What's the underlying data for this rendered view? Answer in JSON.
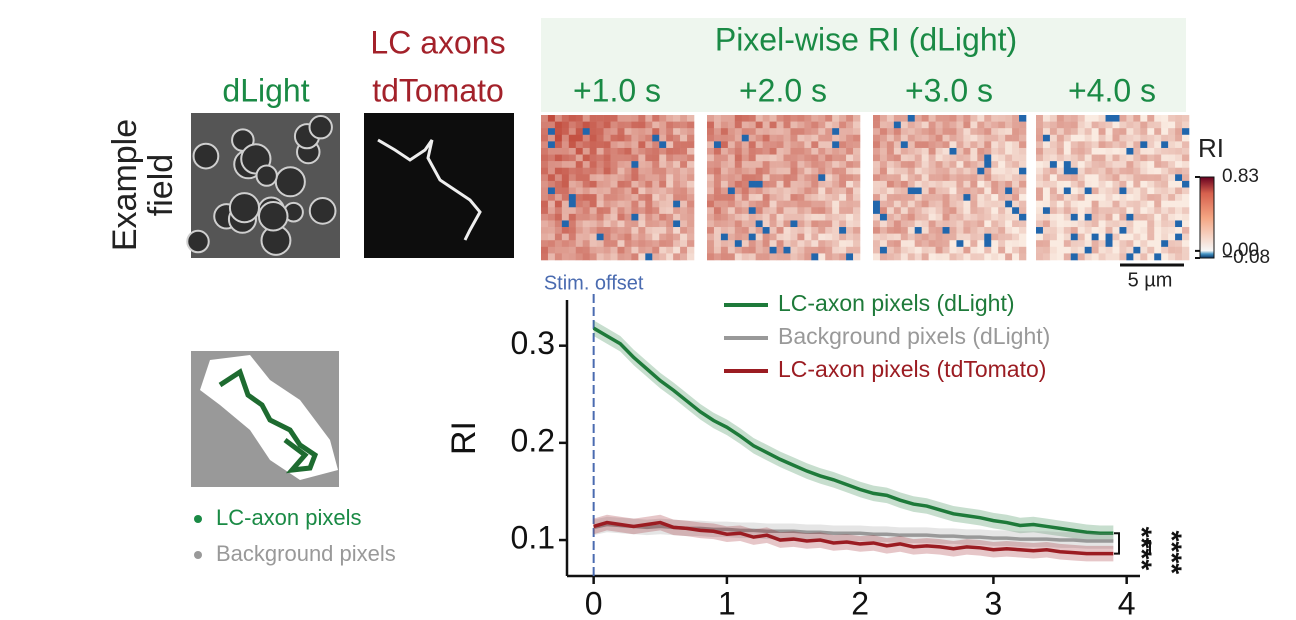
{
  "row_label": [
    "Example",
    "field"
  ],
  "images": {
    "dlight": "dLight",
    "lc_axons": [
      "LC axons",
      "tdTomato"
    ]
  },
  "heatmaps": {
    "title": "Pixel-wise RI (dLight)",
    "times": [
      "+1.0 s",
      "+2.0 s",
      "+3.0 s",
      "+4.0 s"
    ]
  },
  "colorbar": {
    "label": "RI",
    "lim": [
      -0.08,
      0.83
    ],
    "ticks": [
      {
        "value": 0.83,
        "label": "0.83"
      },
      {
        "value": 0,
        "label": "0.00"
      },
      {
        "value": -0.08,
        "label": "−0.08"
      }
    ]
  },
  "scale_bar": "5 µm",
  "mask_legend": [
    "LC-axon pixels",
    "Background pixels"
  ],
  "chart_data": {
    "type": "line",
    "ylabel": "RI",
    "x": [
      0,
      0.1,
      0.2,
      0.3,
      0.4,
      0.5,
      0.6,
      0.7,
      0.8,
      0.9,
      1.0,
      1.1,
      1.2,
      1.3,
      1.4,
      1.5,
      1.6,
      1.7,
      1.8,
      1.9,
      2.0,
      2.1,
      2.2,
      2.3,
      2.4,
      2.5,
      2.6,
      2.7,
      2.8,
      2.9,
      3.0,
      3.1,
      3.2,
      3.3,
      3.4,
      3.5,
      3.6,
      3.7,
      3.8,
      3.9
    ],
    "series": [
      {
        "name": "LC-axon pixels (dLight)",
        "color": "#1e7a3a",
        "error": 0.008,
        "values": [
          0.318,
          0.31,
          0.302,
          0.288,
          0.276,
          0.264,
          0.254,
          0.243,
          0.232,
          0.223,
          0.216,
          0.207,
          0.197,
          0.19,
          0.183,
          0.177,
          0.171,
          0.166,
          0.162,
          0.157,
          0.152,
          0.148,
          0.146,
          0.141,
          0.137,
          0.135,
          0.131,
          0.127,
          0.125,
          0.123,
          0.12,
          0.118,
          0.115,
          0.116,
          0.114,
          0.112,
          0.11,
          0.108,
          0.107,
          0.107
        ]
      },
      {
        "name": "Background pixels (dLight)",
        "color": "#999999",
        "error": 0.008,
        "values": [
          0.113,
          0.116,
          0.115,
          0.114,
          0.113,
          0.114,
          0.113,
          0.112,
          0.112,
          0.111,
          0.111,
          0.11,
          0.11,
          0.109,
          0.109,
          0.109,
          0.108,
          0.108,
          0.107,
          0.107,
          0.107,
          0.106,
          0.106,
          0.105,
          0.105,
          0.105,
          0.104,
          0.104,
          0.103,
          0.103,
          0.102,
          0.102,
          0.101,
          0.101,
          0.101,
          0.1,
          0.1,
          0.099,
          0.099,
          0.099
        ]
      },
      {
        "name": "LC-axon pixels (tdTomato)",
        "color": "#9b1c22",
        "error": 0.008,
        "values": [
          0.114,
          0.118,
          0.116,
          0.114,
          0.116,
          0.118,
          0.113,
          0.112,
          0.11,
          0.109,
          0.106,
          0.107,
          0.103,
          0.105,
          0.1,
          0.101,
          0.099,
          0.1,
          0.097,
          0.098,
          0.096,
          0.097,
          0.094,
          0.096,
          0.093,
          0.094,
          0.093,
          0.091,
          0.093,
          0.092,
          0.09,
          0.091,
          0.09,
          0.089,
          0.09,
          0.088,
          0.087,
          0.086,
          0.086,
          0.086
        ]
      }
    ],
    "xlim": [
      -0.2,
      4.1
    ],
    "ylim": [
      0.063,
      0.347
    ],
    "xticks": [
      0,
      1,
      2,
      3,
      4
    ],
    "yticks": [
      0.1,
      0.2,
      0.3
    ],
    "legend": "upper right",
    "annotations": [
      {
        "text": "Stim. offset",
        "x": 0
      }
    ],
    "significance": [
      "****",
      "****"
    ]
  }
}
